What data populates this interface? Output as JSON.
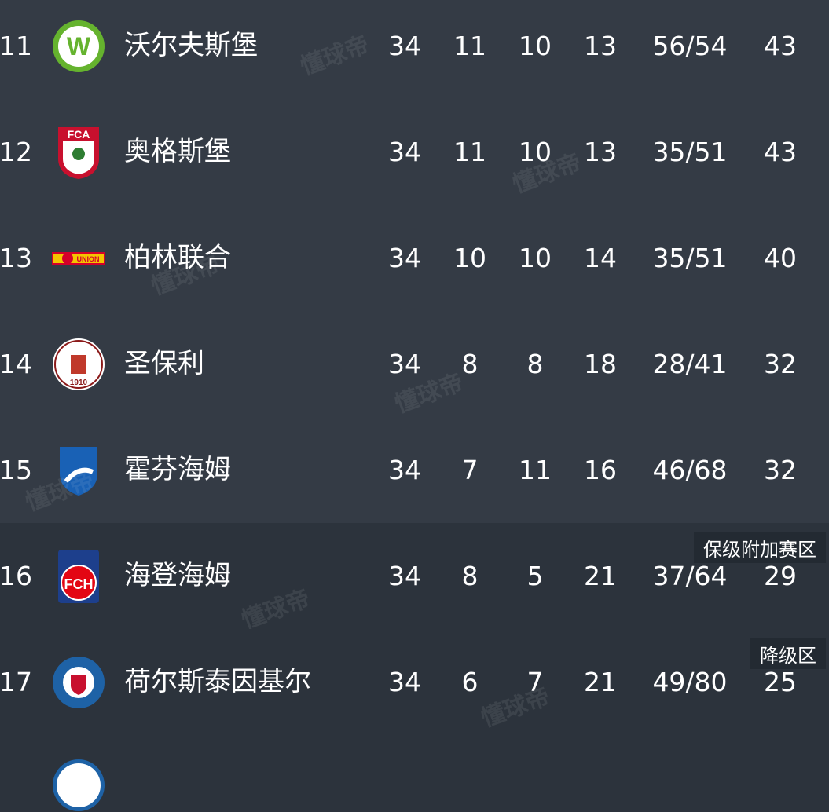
{
  "rows": [
    {
      "rank": "11",
      "team": "沃尔夫斯堡",
      "logo": "wolfsburg-crest",
      "played": "34",
      "won": "11",
      "drawn": "10",
      "lost": "13",
      "goals": "56/54",
      "points": "43"
    },
    {
      "rank": "12",
      "team": "奥格斯堡",
      "logo": "augsburg-crest",
      "played": "34",
      "won": "11",
      "drawn": "10",
      "lost": "13",
      "goals": "35/51",
      "points": "43"
    },
    {
      "rank": "13",
      "team": "柏林联合",
      "logo": "union-berlin-crest",
      "played": "34",
      "won": "10",
      "drawn": "10",
      "lost": "14",
      "goals": "35/51",
      "points": "40"
    },
    {
      "rank": "14",
      "team": "圣保利",
      "logo": "st-pauli-crest",
      "played": "34",
      "won": "8",
      "drawn": "8",
      "lost": "18",
      "goals": "28/41",
      "points": "32"
    },
    {
      "rank": "15",
      "team": "霍芬海姆",
      "logo": "hoffenheim-crest",
      "played": "34",
      "won": "7",
      "drawn": "11",
      "lost": "16",
      "goals": "46/68",
      "points": "32"
    },
    {
      "rank": "16",
      "team": "海登海姆",
      "logo": "heidenheim-crest",
      "played": "34",
      "won": "8",
      "drawn": "5",
      "lost": "21",
      "goals": "37/64",
      "points": "29",
      "zone": "保级附加赛区"
    },
    {
      "rank": "17",
      "team": "荷尔斯泰因基尔",
      "logo": "holstein-kiel-crest",
      "played": "34",
      "won": "6",
      "drawn": "7",
      "lost": "21",
      "goals": "49/80",
      "points": "25",
      "zone": "降级区"
    }
  ],
  "watermark": "懂球帝",
  "colors": {
    "row_bg": "#343b45",
    "zone_row_bg": "#2c333c",
    "badge_bg": "#232a32"
  }
}
